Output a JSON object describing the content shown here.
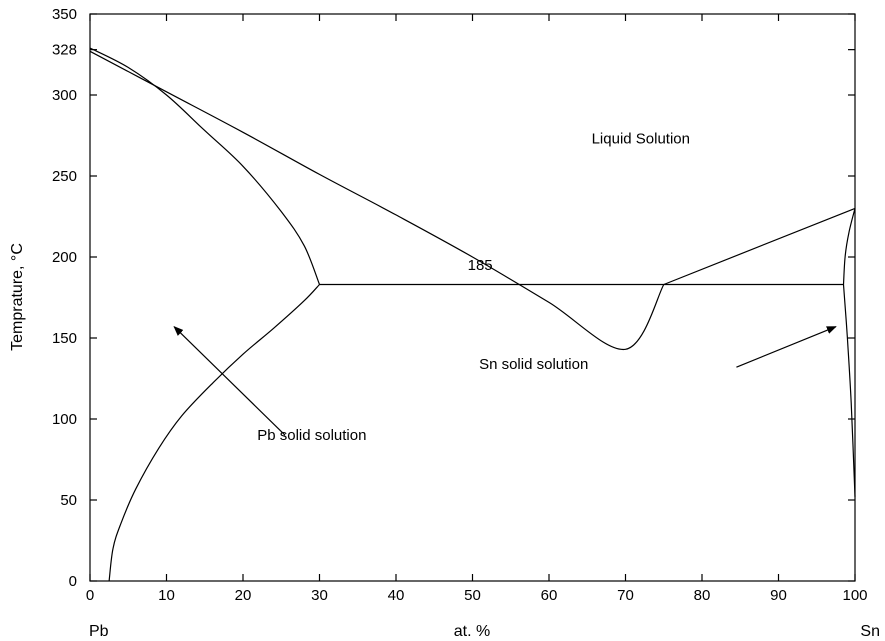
{
  "chart_data": {
    "type": "line",
    "title": "",
    "xlabel": "at. %",
    "ylabel": "Temprature, °C",
    "x_end_labels": {
      "left": "Pb",
      "right": "Sn"
    },
    "xlim": [
      0,
      100
    ],
    "ylim": [
      0,
      350
    ],
    "x_ticks": [
      0,
      10,
      20,
      30,
      40,
      50,
      60,
      70,
      80,
      90,
      100
    ],
    "y_ticks": [
      0,
      50,
      100,
      150,
      200,
      250,
      300,
      328,
      350
    ],
    "grid": false,
    "legend": "none",
    "series": [
      {
        "role": "liquidus-pb-side",
        "points": [
          [
            0,
            327
          ],
          [
            10,
            302
          ],
          [
            20,
            277
          ],
          [
            30,
            251
          ],
          [
            40,
            226
          ],
          [
            50,
            200
          ],
          [
            60,
            172
          ],
          [
            70,
            143
          ],
          [
            75,
            183
          ]
        ]
      },
      {
        "role": "solidus-pb-side",
        "points": [
          [
            0,
            329
          ],
          [
            5,
            317
          ],
          [
            10,
            300
          ],
          [
            15,
            278
          ],
          [
            20,
            256
          ],
          [
            25,
            228
          ],
          [
            28,
            207
          ],
          [
            30,
            183
          ]
        ]
      },
      {
        "role": "solvus-pb-side",
        "points": [
          [
            2.5,
            0
          ],
          [
            3,
            20
          ],
          [
            4,
            35
          ],
          [
            6,
            57
          ],
          [
            9,
            82
          ],
          [
            12,
            102
          ],
          [
            16,
            122
          ],
          [
            20,
            140
          ],
          [
            24,
            156
          ],
          [
            28,
            173
          ],
          [
            30,
            183
          ]
        ]
      },
      {
        "role": "eutectic-isotherm",
        "points": [
          [
            30,
            183
          ],
          [
            98.5,
            183
          ]
        ]
      },
      {
        "role": "liquidus-sn-side",
        "points": [
          [
            75,
            183
          ],
          [
            100,
            230
          ]
        ]
      },
      {
        "role": "solidus-sn-side",
        "points": [
          [
            98.5,
            183
          ],
          [
            98.7,
            200
          ],
          [
            99.2,
            215
          ],
          [
            100,
            230
          ]
        ]
      },
      {
        "role": "solvus-sn-side",
        "points": [
          [
            98.5,
            183
          ],
          [
            99,
            150
          ],
          [
            99.5,
            110
          ],
          [
            100,
            52
          ]
        ]
      }
    ],
    "annotations": [
      {
        "text": "Liquid Solution",
        "x": 72,
        "y": 270
      },
      {
        "text": "185",
        "x": 51,
        "y": 192
      },
      {
        "text": "Pb solid solution",
        "x": 29,
        "y": 87
      },
      {
        "text": "Sn solid solution",
        "x": 58,
        "y": 131
      }
    ],
    "arrows": [
      {
        "from": [
          25.5,
          90
        ],
        "to": [
          11,
          157
        ]
      },
      {
        "from": [
          84.5,
          132
        ],
        "to": [
          97.5,
          157
        ]
      }
    ]
  }
}
